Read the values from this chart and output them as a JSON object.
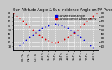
{
  "title": "Sun Altitude Angle & Sun Incidence Angle on PV Panels",
  "bg_color": "#c8c8c8",
  "plot_bg": "#c8c8c8",
  "grid_color": "#ffffff",
  "blue_color": "#0000dd",
  "red_color": "#dd0000",
  "legend_blue_label": "Sun Altitude Angle",
  "legend_red_label": "Sun Incidence Angle on PV",
  "ylim": [
    0,
    90
  ],
  "yticks": [
    10,
    20,
    30,
    40,
    50,
    60,
    70,
    80,
    90
  ],
  "time_hours": [
    5.5,
    6.0,
    6.5,
    7.0,
    7.5,
    8.0,
    8.5,
    9.0,
    9.5,
    10.0,
    10.5,
    11.0,
    11.5,
    12.0,
    12.5,
    13.0,
    13.5,
    14.0,
    14.5,
    15.0,
    15.5,
    16.0,
    16.5,
    17.0,
    17.5,
    18.0,
    18.5
  ],
  "altitude": [
    2,
    6,
    12,
    18,
    25,
    31,
    37,
    43,
    48,
    53,
    57,
    60,
    62,
    63,
    62,
    60,
    57,
    53,
    48,
    43,
    37,
    31,
    25,
    18,
    12,
    6,
    2
  ],
  "incidence": [
    88,
    82,
    76,
    70,
    63,
    56,
    49,
    42,
    37,
    32,
    27,
    23,
    20,
    19,
    20,
    23,
    27,
    32,
    37,
    42,
    49,
    56,
    63,
    70,
    76,
    82,
    88
  ],
  "xtick_labels": [
    "07:Th",
    "08:Th",
    "09:Th",
    "10:Th",
    "11:Th",
    "12:Th",
    "13:Th",
    "14:Th",
    "15:Th",
    "16:Th",
    "17:Th",
    "18:Th"
  ],
  "xtick_positions": [
    7.0,
    8.0,
    9.0,
    10.0,
    11.0,
    12.0,
    13.0,
    14.0,
    15.0,
    16.0,
    17.0,
    18.0
  ],
  "title_fontsize": 3.8,
  "tick_fontsize": 3.0,
  "legend_fontsize": 3.0,
  "marker_size": 1.8,
  "xlim": [
    5.5,
    18.8
  ]
}
